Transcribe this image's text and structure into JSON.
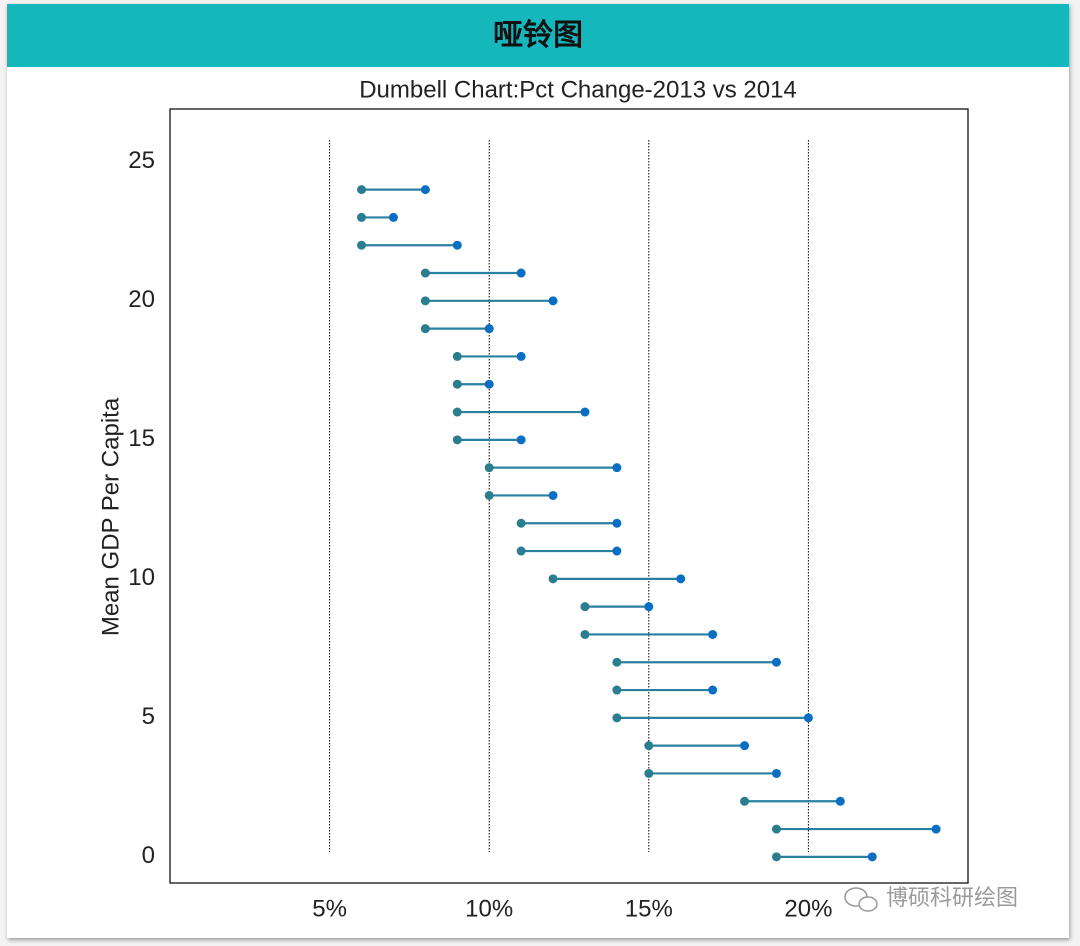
{
  "header": "哑铃图",
  "watermark": "博硕科研绘图",
  "chart_data": {
    "type": "dumbbell",
    "title": "Dumbell Chart:Pct Change-2013 vs 2014",
    "y_label": "Mean GDP Per Capita",
    "y": [
      0,
      1,
      2,
      3,
      4,
      5,
      6,
      7,
      8,
      9,
      10,
      11,
      12,
      13,
      14,
      15,
      16,
      17,
      18,
      19,
      20,
      21,
      22,
      23,
      24
    ],
    "series": [
      {
        "color": "#2b7e8f",
        "values": [
          19,
          19,
          18,
          15,
          15,
          14,
          14,
          14,
          13,
          13,
          12,
          11,
          11,
          10,
          10,
          9,
          9,
          9,
          9,
          8,
          8,
          8,
          6,
          6,
          6
        ]
      },
      {
        "color": "#0a6ec4",
        "values": [
          22,
          24,
          21,
          19,
          18,
          20,
          17,
          19,
          17,
          15,
          16,
          14,
          14,
          12,
          14,
          11,
          13,
          10,
          11,
          10,
          12,
          11,
          9,
          7,
          8
        ]
      }
    ],
    "segment_color": "#2a80a0",
    "xlim": [
      0,
      25
    ],
    "xticks": [
      {
        "value": 5,
        "label": "5%"
      },
      {
        "value": 10,
        "label": "10%"
      },
      {
        "value": 15,
        "label": "15%"
      },
      {
        "value": 20,
        "label": "20%"
      }
    ],
    "ylim": [
      -0.94,
      26.9
    ],
    "yticks": [
      0,
      5,
      10,
      15,
      20,
      25
    ],
    "grid": true
  }
}
